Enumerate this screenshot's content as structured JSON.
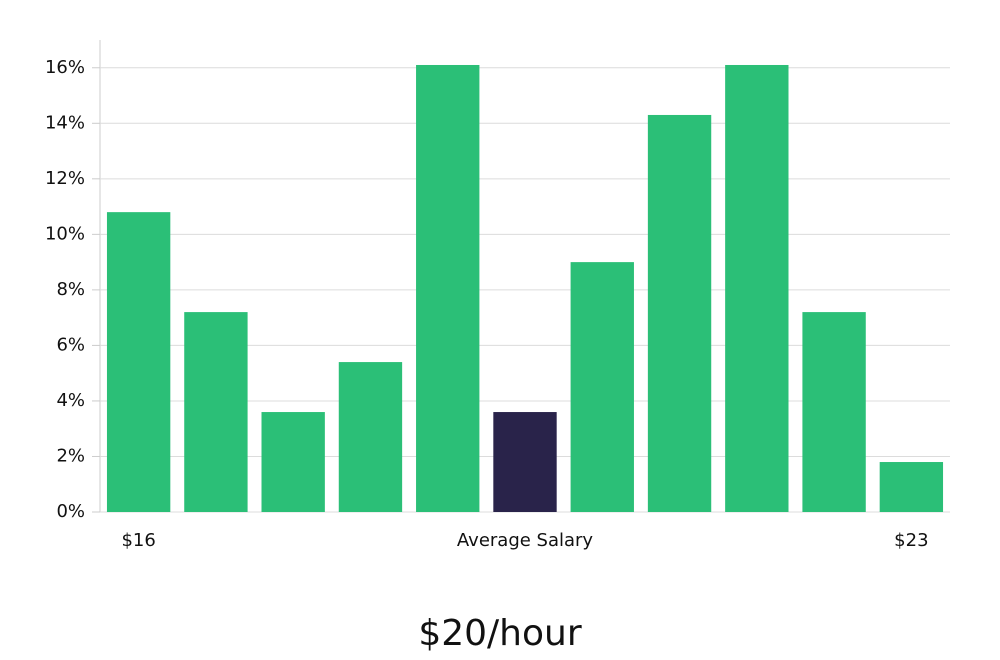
{
  "chart_data": {
    "type": "bar",
    "title": "$20/hour",
    "categories": [
      "$16",
      null,
      null,
      null,
      null,
      "Average Salary",
      null,
      null,
      null,
      null,
      "$23"
    ],
    "values": [
      10.8,
      7.2,
      3.6,
      5.4,
      16.1,
      3.6,
      9.0,
      14.3,
      16.1,
      7.2,
      1.8
    ],
    "colors": [
      "#2bbf77",
      "#2bbf77",
      "#2bbf77",
      "#2bbf77",
      "#2bbf77",
      "#29234a",
      "#2bbf77",
      "#2bbf77",
      "#2bbf77",
      "#2bbf77",
      "#2bbf77"
    ],
    "ylim": [
      0,
      17
    ],
    "yticks": [
      {
        "value": 0,
        "label": "0%"
      },
      {
        "value": 2,
        "label": "2%"
      },
      {
        "value": 4,
        "label": "4%"
      },
      {
        "value": 6,
        "label": "6%"
      },
      {
        "value": 8,
        "label": "8%"
      },
      {
        "value": 10,
        "label": "10%"
      },
      {
        "value": 12,
        "label": "12%"
      },
      {
        "value": 14,
        "label": "14%"
      },
      {
        "value": 16,
        "label": "16%"
      }
    ],
    "grid": true
  }
}
